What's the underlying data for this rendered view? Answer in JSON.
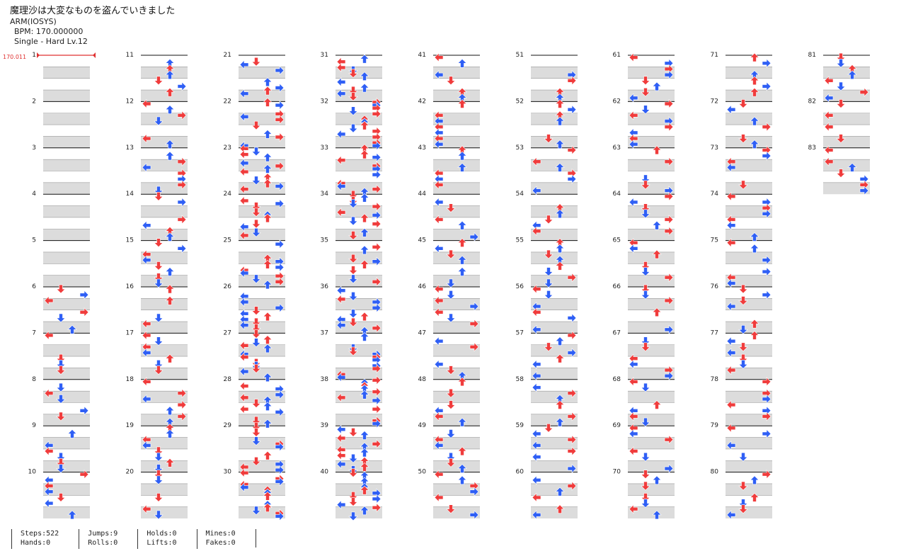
{
  "header": {
    "title": "魔理沙は大変なものを盗んでいきました",
    "artist": "ARM(IOSYS)",
    "bpm_text": "BPM: 170.000000",
    "difficulty_text": "Single - Hard  Lv.12"
  },
  "bpm_marker": {
    "text": "170.011",
    "color": "#e03030"
  },
  "chart_data": {
    "type": "step-chart",
    "total_measures": 83,
    "measure_labels": [
      "1",
      "2",
      "3",
      "4",
      "5",
      "6",
      "7",
      "8",
      "9",
      "10",
      "11",
      "12",
      "13",
      "14",
      "15",
      "16",
      "17",
      "18",
      "19",
      "20",
      "21",
      "22",
      "23",
      "24",
      "25",
      "26",
      "27",
      "28",
      "29",
      "30",
      "31",
      "32",
      "33",
      "34",
      "35",
      "36",
      "37",
      "38",
      "39",
      "40",
      "41",
      "42",
      "43",
      "44",
      "45",
      "46",
      "47",
      "48",
      "49",
      "50",
      "51",
      "52",
      "53",
      "54",
      "55",
      "56",
      "57",
      "58",
      "59",
      "60",
      "61",
      "62",
      "63",
      "64",
      "65",
      "66",
      "67",
      "68",
      "69",
      "70",
      "71",
      "72",
      "73",
      "74",
      "75",
      "76",
      "77",
      "78",
      "79",
      "80",
      "81",
      "82",
      "83"
    ],
    "lanes": [
      "left",
      "down",
      "up",
      "right"
    ],
    "note_colors": {
      "quarter": "#f03c3c",
      "eighth": "#2f5ff5",
      "sixteenth": "#f0d020"
    },
    "columns": 9,
    "measures_per_column": 10
  },
  "stats": [
    {
      "row1": "Steps:522",
      "row2": "Hands:0"
    },
    {
      "row1": "Jumps:9",
      "row2": "Rolls:0"
    },
    {
      "row1": "Holds:0",
      "row2": "Lifts:0"
    },
    {
      "row1": "Mines:0",
      "row2": "Fakes:0"
    }
  ]
}
